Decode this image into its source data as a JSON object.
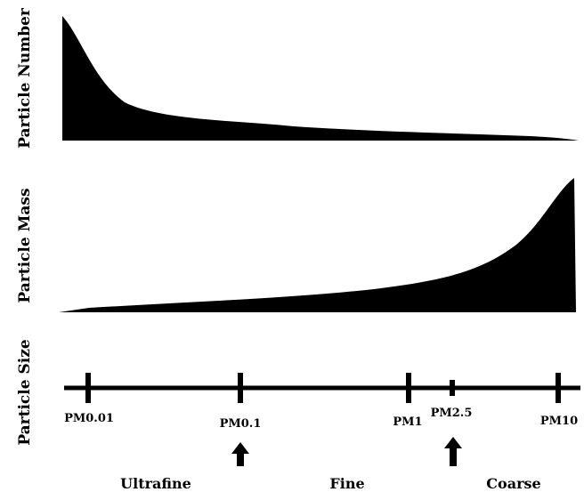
{
  "panels": {
    "number": {
      "ylabel": "Particle Number"
    },
    "mass": {
      "ylabel": "Particle Mass"
    },
    "size": {
      "ylabel": "Particle Size"
    }
  },
  "size_axis": {
    "markers": [
      {
        "label": "PM0.01",
        "major": true
      },
      {
        "label": "PM0.1",
        "major": true
      },
      {
        "label": "PM1",
        "major": true
      },
      {
        "label": "PM2.5",
        "major": false
      },
      {
        "label": "PM10",
        "major": true
      }
    ],
    "arrows_at": [
      "PM0.1",
      "PM2.5"
    ]
  },
  "categories": [
    "Ultrafine",
    "Fine",
    "Coarse"
  ],
  "colors": {
    "fill": "#000000",
    "background": "#ffffff"
  }
}
